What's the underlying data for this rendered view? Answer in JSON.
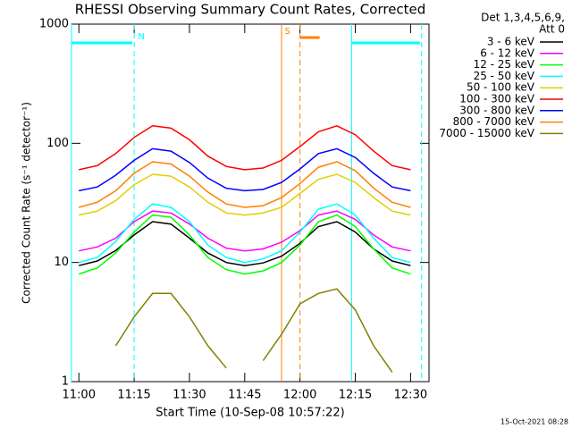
{
  "chart_data": {
    "type": "line",
    "title": "RHESSI Observing Summary Count Rates, Corrected",
    "y_label": "Corrected Count Rate (s⁻¹ detector⁻¹)",
    "x_label": "Start Time (10-Sep-08 10:57:22)",
    "legend_header": [
      "Det 1,3,4,5,6,9,",
      "Att 0"
    ],
    "timestamp": "15-Oct-2021 08:28",
    "log_y": true,
    "legend": "right",
    "xlim": [
      "10:58",
      "12:35"
    ],
    "xticks": [
      "11:00",
      "11:15",
      "11:30",
      "11:45",
      "12:00",
      "12:15",
      "12:30"
    ],
    "ylim": [
      1,
      1000
    ],
    "yticks": [
      1,
      10,
      100,
      1000
    ],
    "x": [
      "11:00",
      "11:05",
      "11:10",
      "11:15",
      "11:20",
      "11:25",
      "11:30",
      "11:35",
      "11:40",
      "11:45",
      "11:50",
      "11:55",
      "12:00",
      "12:05",
      "12:10",
      "12:15",
      "12:20",
      "12:25",
      "12:30"
    ],
    "series": [
      {
        "name": "3 - 6 keV",
        "color": "#000000",
        "values": [
          9.4,
          10.3,
          12.6,
          17,
          22,
          21,
          16,
          12,
          10,
          9.4,
          9.9,
          11.3,
          14.5,
          20,
          22,
          18,
          13,
          10.3,
          9.4
        ]
      },
      {
        "name": "6 - 12 keV",
        "color": "#ff00ff",
        "values": [
          12.5,
          13.5,
          16,
          22,
          27,
          26,
          21,
          16,
          13.2,
          12.5,
          13,
          14.8,
          18.5,
          25,
          27,
          23,
          17,
          13.5,
          12.5
        ]
      },
      {
        "name": "12 - 25 keV",
        "color": "#00ff00",
        "values": [
          8,
          9,
          12,
          18,
          25,
          24,
          17,
          11,
          8.7,
          8,
          8.5,
          10,
          14,
          22,
          25,
          20,
          13,
          9,
          8
        ]
      },
      {
        "name": "25 - 50 keV",
        "color": "#00ffff",
        "values": [
          10,
          11,
          15,
          23,
          31,
          29,
          22,
          14,
          11,
          10,
          10.7,
          12.5,
          18,
          28,
          31,
          25,
          16,
          11,
          10
        ]
      },
      {
        "name": "50 - 100 keV",
        "color": "#e0d000",
        "values": [
          25,
          27,
          33,
          45,
          55,
          53,
          43,
          32,
          26,
          25,
          26,
          29,
          38,
          50,
          55,
          47,
          35,
          27,
          25
        ]
      },
      {
        "name": "100 - 300 keV",
        "color": "#ff0000",
        "values": [
          60,
          65,
          82,
          112,
          140,
          134,
          107,
          78,
          64,
          60,
          62,
          72,
          94,
          125,
          140,
          118,
          86,
          65,
          60
        ]
      },
      {
        "name": "300 - 800 keV",
        "color": "#0000ff",
        "values": [
          40,
          43,
          54,
          72,
          90,
          86,
          69,
          51,
          42,
          40,
          41,
          47,
          61,
          82,
          90,
          76,
          56,
          43,
          40
        ]
      },
      {
        "name": "800 - 7000 keV",
        "color": "#ff8000",
        "values": [
          29,
          32,
          40,
          56,
          70,
          67,
          53,
          39,
          31,
          29,
          30,
          35,
          46,
          63,
          70,
          59,
          42,
          32,
          29
        ]
      },
      {
        "name": "7000 - 15000 keV",
        "color": "#808000",
        "values": [
          null,
          null,
          2,
          3.5,
          5.5,
          5.5,
          3.5,
          2,
          1.3,
          null,
          1.5,
          2.5,
          4.5,
          5.5,
          6,
          4,
          2,
          1.2,
          null
        ]
      }
    ],
    "intervals": [
      {
        "label": "N",
        "start": "10:58",
        "end": "11:15",
        "color": "#00ffff"
      },
      {
        "start": "12:14",
        "end": "12:33",
        "color": "#00ffff"
      },
      {
        "label": "S",
        "start": "11:55",
        "end": "12:00",
        "color": "#ff8000"
      }
    ]
  }
}
